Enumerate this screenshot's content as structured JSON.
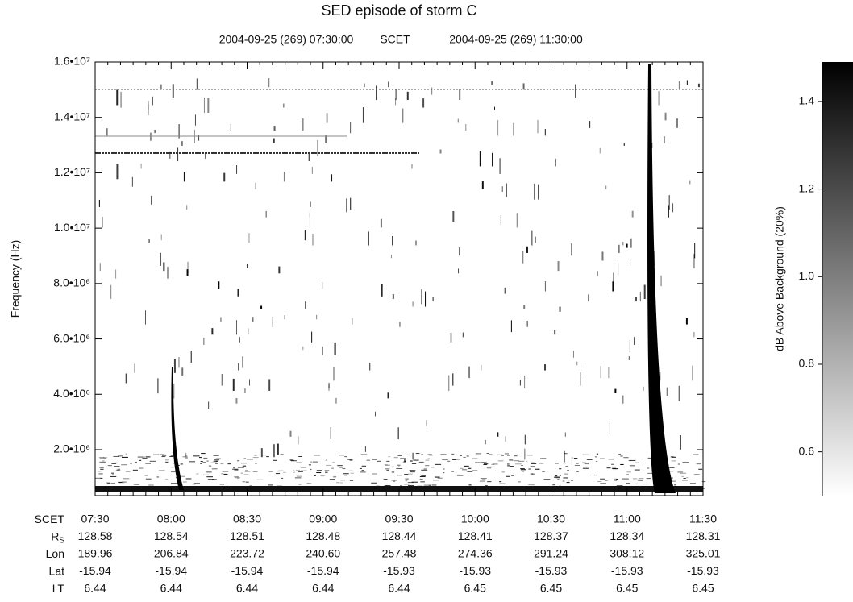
{
  "chart_data": {
    "type": "spectrogram",
    "title": "SED episode of storm C",
    "start_time": "2004-09-25 (269) 07:30:00",
    "x_label": "SCET",
    "end_time": "2004-09-25 (269) 11:30:00",
    "y_label": "Frequency (Hz)",
    "ylim": [
      340000,
      16000000
    ],
    "yticks": [
      {
        "value": 2000000,
        "label": "2.0•10⁶"
      },
      {
        "value": 4000000,
        "label": "4.0•10⁶"
      },
      {
        "value": 6000000,
        "label": "6.0•10⁶"
      },
      {
        "value": 8000000,
        "label": "8.0•10⁶"
      },
      {
        "value": 10000000,
        "label": "1.0•10⁷"
      },
      {
        "value": 12000000,
        "label": "1.2•10⁷"
      },
      {
        "value": 14000000,
        "label": "1.4•10⁷"
      },
      {
        "value": 16000000,
        "label": "1.6•10⁷"
      }
    ],
    "colorbar": {
      "label": "dB Above Background (20%)",
      "lim": [
        0.5,
        1.49
      ],
      "colors": [
        "#ffffff",
        "#000000"
      ],
      "ticks": [
        0.6,
        0.8,
        {
          "value": 1,
          "label": "1.0"
        },
        1.2,
        1.4
      ]
    },
    "ephemeris": [
      {
        "label": "SCET",
        "values": [
          "07:30",
          "08:00",
          "08:30",
          "09:00",
          "09:30",
          "10:00",
          "10:30",
          "11:00",
          "11:30"
        ]
      },
      {
        "label": "R",
        "label_sub": "S",
        "values": [
          "128.58",
          "128.54",
          "128.51",
          "128.48",
          "128.44",
          "128.41",
          "128.37",
          "128.34",
          "128.31"
        ]
      },
      {
        "label": "Lon",
        "values": [
          "189.96",
          "206.84",
          "223.72",
          "240.60",
          "257.48",
          "274.36",
          "291.24",
          "308.12",
          "325.01"
        ]
      },
      {
        "label": "Lat",
        "values": [
          "-15.94",
          "-15.94",
          "-15.94",
          "-15.94",
          "-15.93",
          "-15.93",
          "-15.93",
          "-15.93",
          "-15.93"
        ]
      },
      {
        "label": "LT",
        "values": [
          "6.44",
          "6.44",
          "6.44",
          "6.44",
          "6.44",
          "6.45",
          "6.45",
          "6.45",
          "6.45"
        ]
      }
    ]
  }
}
